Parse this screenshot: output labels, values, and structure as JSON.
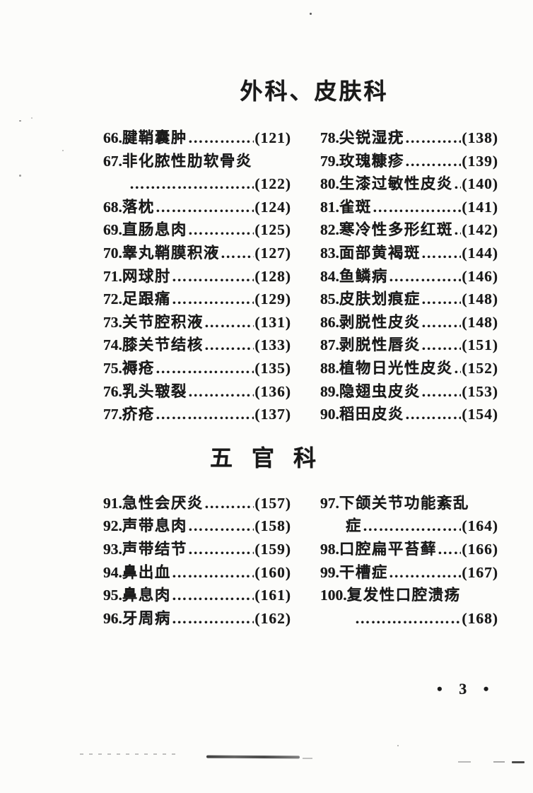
{
  "colors": {
    "paper": "#fcfcfa",
    "ink": "#1a1a1a"
  },
  "page": {
    "footer": "• 3 •"
  },
  "sections": [
    {
      "title": "外科、皮肤科",
      "columns": {
        "left": [
          {
            "num": "66.",
            "text": "腱鞘囊肿",
            "page": "(121)"
          },
          {
            "num": "67.",
            "text": "非化脓性肋软骨炎",
            "page": "(122)",
            "two_line": true,
            "carry": ""
          },
          {
            "num": "68.",
            "text": "落枕",
            "page": "(124)"
          },
          {
            "num": "69.",
            "text": "直肠息肉",
            "page": "(125)"
          },
          {
            "num": "70.",
            "text": "睾丸鞘膜积液",
            "page": "(127)"
          },
          {
            "num": "71.",
            "text": "网球肘",
            "page": "(128)"
          },
          {
            "num": "72.",
            "text": "足跟痛",
            "page": "(129)"
          },
          {
            "num": "73.",
            "text": "关节腔积液",
            "page": "(131)"
          },
          {
            "num": "74.",
            "text": "膝关节结核",
            "page": "(133)"
          },
          {
            "num": "75.",
            "text": "褥疮",
            "page": "(135)"
          },
          {
            "num": "76.",
            "text": "乳头皲裂",
            "page": "(136)"
          },
          {
            "num": "77.",
            "text": "疥疮",
            "page": "(137)"
          }
        ],
        "right": [
          {
            "num": "78.",
            "text": "尖锐湿疣",
            "page": "(138)"
          },
          {
            "num": "79.",
            "text": "玫瑰糠疹",
            "page": "(139)"
          },
          {
            "num": "80.",
            "text": "生漆过敏性皮炎",
            "page": "(140)"
          },
          {
            "num": "81.",
            "text": "雀斑",
            "page": "(141)"
          },
          {
            "num": "82.",
            "text": "寒冷性多形红斑",
            "page": "(142)"
          },
          {
            "num": "83.",
            "text": "面部黄褐斑",
            "page": "(144)"
          },
          {
            "num": "84.",
            "text": "鱼鳞病",
            "page": "(146)"
          },
          {
            "num": "85.",
            "text": "皮肤划痕症",
            "page": "(148)"
          },
          {
            "num": "86.",
            "text": "剥脱性皮炎",
            "page": "(148)"
          },
          {
            "num": "87.",
            "text": "剥脱性唇炎",
            "page": "(151)"
          },
          {
            "num": "88.",
            "text": "植物日光性皮炎",
            "page": "(152)"
          },
          {
            "num": "89.",
            "text": "隐翅虫皮炎",
            "page": "(153)"
          },
          {
            "num": "90.",
            "text": "稻田皮炎",
            "page": "(154)"
          }
        ]
      }
    },
    {
      "title": "五官科",
      "columns": {
        "left": [
          {
            "num": "91.",
            "text": "急性会厌炎",
            "page": "(157)"
          },
          {
            "num": "92.",
            "text": "声带息肉",
            "page": "(158)"
          },
          {
            "num": "93.",
            "text": "声带结节",
            "page": "(159)"
          },
          {
            "num": "94.",
            "text": "鼻出血",
            "page": "(160)"
          },
          {
            "num": "95.",
            "text": "鼻息肉",
            "page": "(161)"
          },
          {
            "num": "96.",
            "text": "牙周病",
            "page": "(162)"
          }
        ],
        "right": [
          {
            "num": "97.",
            "text": "下颌关节功能紊乱",
            "page": "(164)",
            "two_line": true,
            "carry": "症"
          },
          {
            "num": "98.",
            "text": "口腔扁平苔藓",
            "page": "(166)"
          },
          {
            "num": "99.",
            "text": "干槽症",
            "page": "(167)"
          },
          {
            "num": "100.",
            "text": "复发性口腔溃疡",
            "page": "(168)",
            "two_line": true,
            "carry": ""
          }
        ]
      }
    }
  ]
}
